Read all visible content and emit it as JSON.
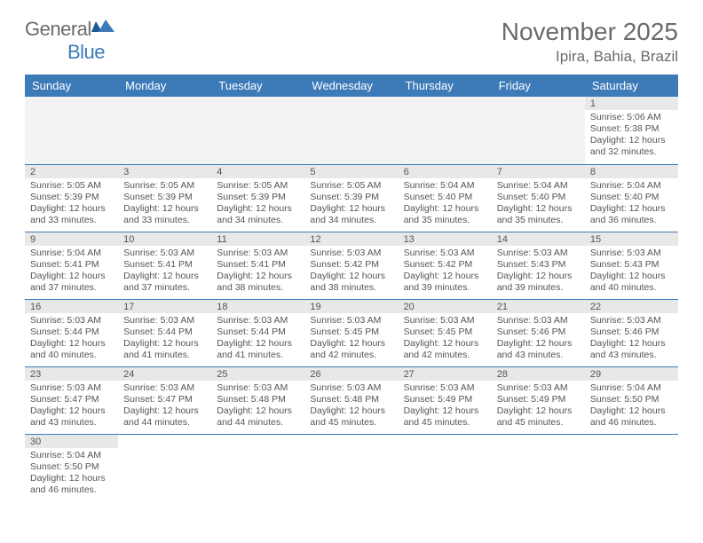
{
  "logo": {
    "general": "General",
    "blue": "Blue"
  },
  "title": "November 2025",
  "location": "Ipira, Bahia, Brazil",
  "colors": {
    "headerBg": "#3d7bb8",
    "headerText": "#ffffff",
    "dayStrip": "#e8e8e8",
    "bodyText": "#555555"
  },
  "weekdays": [
    "Sunday",
    "Monday",
    "Tuesday",
    "Wednesday",
    "Thursday",
    "Friday",
    "Saturday"
  ],
  "grid": [
    [
      null,
      null,
      null,
      null,
      null,
      null,
      {
        "n": "1",
        "sr": "Sunrise: 5:06 AM",
        "ss": "Sunset: 5:38 PM",
        "dl": "Daylight: 12 hours and 32 minutes."
      }
    ],
    [
      {
        "n": "2",
        "sr": "Sunrise: 5:05 AM",
        "ss": "Sunset: 5:39 PM",
        "dl": "Daylight: 12 hours and 33 minutes."
      },
      {
        "n": "3",
        "sr": "Sunrise: 5:05 AM",
        "ss": "Sunset: 5:39 PM",
        "dl": "Daylight: 12 hours and 33 minutes."
      },
      {
        "n": "4",
        "sr": "Sunrise: 5:05 AM",
        "ss": "Sunset: 5:39 PM",
        "dl": "Daylight: 12 hours and 34 minutes."
      },
      {
        "n": "5",
        "sr": "Sunrise: 5:05 AM",
        "ss": "Sunset: 5:39 PM",
        "dl": "Daylight: 12 hours and 34 minutes."
      },
      {
        "n": "6",
        "sr": "Sunrise: 5:04 AM",
        "ss": "Sunset: 5:40 PM",
        "dl": "Daylight: 12 hours and 35 minutes."
      },
      {
        "n": "7",
        "sr": "Sunrise: 5:04 AM",
        "ss": "Sunset: 5:40 PM",
        "dl": "Daylight: 12 hours and 35 minutes."
      },
      {
        "n": "8",
        "sr": "Sunrise: 5:04 AM",
        "ss": "Sunset: 5:40 PM",
        "dl": "Daylight: 12 hours and 36 minutes."
      }
    ],
    [
      {
        "n": "9",
        "sr": "Sunrise: 5:04 AM",
        "ss": "Sunset: 5:41 PM",
        "dl": "Daylight: 12 hours and 37 minutes."
      },
      {
        "n": "10",
        "sr": "Sunrise: 5:03 AM",
        "ss": "Sunset: 5:41 PM",
        "dl": "Daylight: 12 hours and 37 minutes."
      },
      {
        "n": "11",
        "sr": "Sunrise: 5:03 AM",
        "ss": "Sunset: 5:41 PM",
        "dl": "Daylight: 12 hours and 38 minutes."
      },
      {
        "n": "12",
        "sr": "Sunrise: 5:03 AM",
        "ss": "Sunset: 5:42 PM",
        "dl": "Daylight: 12 hours and 38 minutes."
      },
      {
        "n": "13",
        "sr": "Sunrise: 5:03 AM",
        "ss": "Sunset: 5:42 PM",
        "dl": "Daylight: 12 hours and 39 minutes."
      },
      {
        "n": "14",
        "sr": "Sunrise: 5:03 AM",
        "ss": "Sunset: 5:43 PM",
        "dl": "Daylight: 12 hours and 39 minutes."
      },
      {
        "n": "15",
        "sr": "Sunrise: 5:03 AM",
        "ss": "Sunset: 5:43 PM",
        "dl": "Daylight: 12 hours and 40 minutes."
      }
    ],
    [
      {
        "n": "16",
        "sr": "Sunrise: 5:03 AM",
        "ss": "Sunset: 5:44 PM",
        "dl": "Daylight: 12 hours and 40 minutes."
      },
      {
        "n": "17",
        "sr": "Sunrise: 5:03 AM",
        "ss": "Sunset: 5:44 PM",
        "dl": "Daylight: 12 hours and 41 minutes."
      },
      {
        "n": "18",
        "sr": "Sunrise: 5:03 AM",
        "ss": "Sunset: 5:44 PM",
        "dl": "Daylight: 12 hours and 41 minutes."
      },
      {
        "n": "19",
        "sr": "Sunrise: 5:03 AM",
        "ss": "Sunset: 5:45 PM",
        "dl": "Daylight: 12 hours and 42 minutes."
      },
      {
        "n": "20",
        "sr": "Sunrise: 5:03 AM",
        "ss": "Sunset: 5:45 PM",
        "dl": "Daylight: 12 hours and 42 minutes."
      },
      {
        "n": "21",
        "sr": "Sunrise: 5:03 AM",
        "ss": "Sunset: 5:46 PM",
        "dl": "Daylight: 12 hours and 43 minutes."
      },
      {
        "n": "22",
        "sr": "Sunrise: 5:03 AM",
        "ss": "Sunset: 5:46 PM",
        "dl": "Daylight: 12 hours and 43 minutes."
      }
    ],
    [
      {
        "n": "23",
        "sr": "Sunrise: 5:03 AM",
        "ss": "Sunset: 5:47 PM",
        "dl": "Daylight: 12 hours and 43 minutes."
      },
      {
        "n": "24",
        "sr": "Sunrise: 5:03 AM",
        "ss": "Sunset: 5:47 PM",
        "dl": "Daylight: 12 hours and 44 minutes."
      },
      {
        "n": "25",
        "sr": "Sunrise: 5:03 AM",
        "ss": "Sunset: 5:48 PM",
        "dl": "Daylight: 12 hours and 44 minutes."
      },
      {
        "n": "26",
        "sr": "Sunrise: 5:03 AM",
        "ss": "Sunset: 5:48 PM",
        "dl": "Daylight: 12 hours and 45 minutes."
      },
      {
        "n": "27",
        "sr": "Sunrise: 5:03 AM",
        "ss": "Sunset: 5:49 PM",
        "dl": "Daylight: 12 hours and 45 minutes."
      },
      {
        "n": "28",
        "sr": "Sunrise: 5:03 AM",
        "ss": "Sunset: 5:49 PM",
        "dl": "Daylight: 12 hours and 45 minutes."
      },
      {
        "n": "29",
        "sr": "Sunrise: 5:04 AM",
        "ss": "Sunset: 5:50 PM",
        "dl": "Daylight: 12 hours and 46 minutes."
      }
    ],
    [
      {
        "n": "30",
        "sr": "Sunrise: 5:04 AM",
        "ss": "Sunset: 5:50 PM",
        "dl": "Daylight: 12 hours and 46 minutes."
      },
      null,
      null,
      null,
      null,
      null,
      null
    ]
  ]
}
